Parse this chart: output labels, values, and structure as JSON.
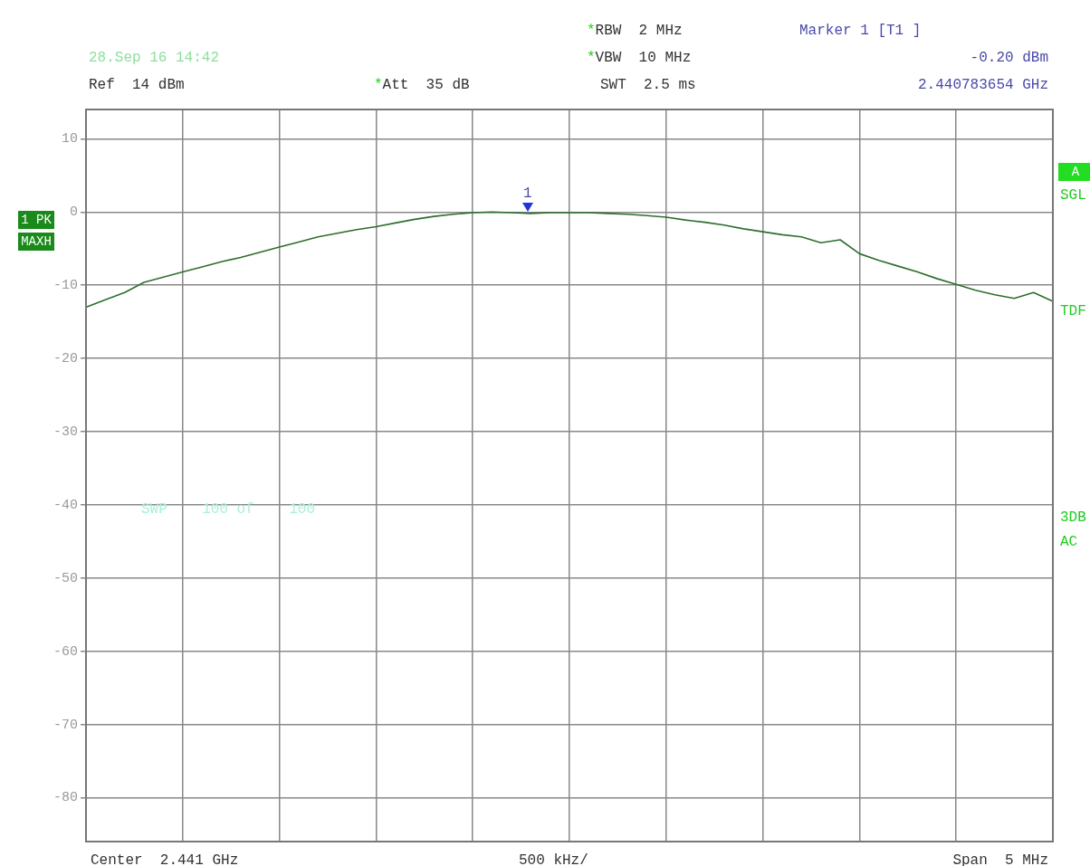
{
  "chart_data": {
    "type": "line",
    "annotations": [
      "28.Sep 16 14:42",
      "Ref  14 dBm",
      "*Att  35 dB",
      "*RBW  2 MHz",
      "*VBW  10 MHz",
      "SWT  2.5 ms",
      "Marker 1 [T1 ]",
      "-0.20 dBm",
      "2.440783654 GHz",
      "1 PK",
      "MAXH",
      "A",
      "SGL",
      "TDF",
      "3DB",
      "AC",
      "SWP    100 of    100",
      "Center  2.441 GHz",
      "500 kHz/",
      "Span  5 MHz",
      {
        "text": "1",
        "y": -0.2
      }
    ],
    "categories": [
      null,
      null,
      null,
      null,
      null,
      null,
      null,
      null,
      null,
      null,
      null,
      null,
      null,
      null,
      null,
      null,
      null,
      null,
      null,
      null,
      null,
      null,
      null,
      null,
      null,
      null,
      null,
      null,
      null,
      null,
      null,
      null,
      null,
      null,
      null,
      null,
      null,
      null,
      null,
      null,
      null,
      null,
      null,
      null,
      null,
      null,
      null,
      null,
      null,
      null,
      null
    ],
    "series": [
      {
        "color": "#2e6e2e",
        "values": [
          -13.0,
          -12.0,
          -11.0,
          -9.6,
          -8.9,
          -8.2,
          -7.5,
          -6.8,
          -6.2,
          -5.5,
          -4.8,
          -4.1,
          -3.4,
          -2.9,
          -2.4,
          -2.0,
          -1.5,
          -1.0,
          -0.6,
          -0.3,
          -0.1,
          0.0,
          -0.1,
          -0.2,
          -0.1,
          -0.1,
          -0.1,
          -0.2,
          -0.3,
          -0.5,
          -0.7,
          -1.1,
          -1.4,
          -1.8,
          -2.3,
          -2.7,
          -3.1,
          -3.4,
          -4.2,
          -3.8,
          -5.7,
          -6.6,
          -7.4,
          -8.2,
          -9.1,
          -9.9,
          -10.7,
          -11.3,
          -11.8,
          -11.0,
          -12.2
        ]
      }
    ],
    "ylim": [
      -86,
      14
    ],
    "yticks": [
      10,
      0,
      -10,
      -20,
      -30,
      -40,
      -50,
      -60,
      -70,
      -80
    ],
    "tick_labels": "y",
    "grid": true,
    "legend": false,
    "marker": "none",
    "line_style": "solid"
  }
}
